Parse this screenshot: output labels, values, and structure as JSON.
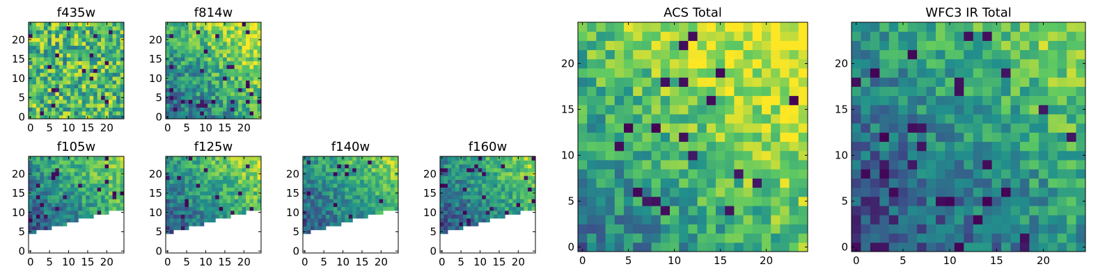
{
  "colormap": "viridis",
  "colormap_stops": [
    "#440154",
    "#3b528b",
    "#21918c",
    "#5ec962",
    "#fde725"
  ],
  "chart_data": [
    {
      "type": "heatmap",
      "title": "f435w",
      "grid_size": 25,
      "xlim": [
        0,
        24
      ],
      "ylim": [
        0,
        24
      ],
      "xticks": [
        0,
        5,
        10,
        15,
        20
      ],
      "yticks": [
        0,
        5,
        10,
        15,
        20
      ],
      "pattern": "noise",
      "mean_level": 0.68,
      "noise_level": 0.3,
      "dark_pixel_fraction": 0.03,
      "missing_region": "none"
    },
    {
      "type": "heatmap",
      "title": "f814w",
      "grid_size": 25,
      "xlim": [
        0,
        24
      ],
      "ylim": [
        0,
        24
      ],
      "xticks": [
        0,
        5,
        10,
        15,
        20
      ],
      "yticks": [
        0,
        5,
        10,
        15,
        20
      ],
      "pattern": "gradient toward top-right",
      "mean_level": 0.5,
      "noise_level": 0.22,
      "dark_pixel_fraction": 0.04,
      "missing_region": "none"
    },
    {
      "type": "heatmap",
      "title": "f105w",
      "grid_size": 25,
      "xlim": [
        0,
        24
      ],
      "ylim": [
        0,
        24
      ],
      "xticks": [
        0,
        5,
        10,
        15,
        20
      ],
      "yticks": [
        0,
        5,
        10,
        15,
        20
      ],
      "pattern": "gradient toward top-right",
      "mean_level": 0.38,
      "noise_level": 0.18,
      "dark_pixel_fraction": 0.04,
      "missing_region": "lower-right wedge"
    },
    {
      "type": "heatmap",
      "title": "f125w",
      "grid_size": 25,
      "xlim": [
        0,
        24
      ],
      "ylim": [
        0,
        24
      ],
      "xticks": [
        0,
        5,
        10,
        15,
        20
      ],
      "yticks": [
        0,
        5,
        10,
        15,
        20
      ],
      "pattern": "gradient toward top-right",
      "mean_level": 0.4,
      "noise_level": 0.18,
      "dark_pixel_fraction": 0.04,
      "missing_region": "lower-right wedge"
    },
    {
      "type": "heatmap",
      "title": "f140w",
      "grid_size": 25,
      "xlim": [
        0,
        24
      ],
      "ylim": [
        0,
        24
      ],
      "xticks": [
        0,
        5,
        10,
        15,
        20
      ],
      "yticks": [
        0,
        5,
        10,
        15,
        20
      ],
      "pattern": "gradient toward top-right",
      "mean_level": 0.38,
      "noise_level": 0.17,
      "dark_pixel_fraction": 0.04,
      "missing_region": "lower-right wedge"
    },
    {
      "type": "heatmap",
      "title": "f160w",
      "grid_size": 25,
      "xlim": [
        0,
        24
      ],
      "ylim": [
        0,
        24
      ],
      "xticks": [
        0,
        5,
        10,
        15,
        20
      ],
      "yticks": [
        0,
        5,
        10,
        15,
        20
      ],
      "pattern": "gradient toward top-right",
      "mean_level": 0.36,
      "noise_level": 0.17,
      "dark_pixel_fraction": 0.05,
      "missing_region": "lower-right wedge"
    },
    {
      "type": "heatmap",
      "title": "ACS Total",
      "grid_size": 25,
      "xlim": [
        0,
        24
      ],
      "ylim": [
        0,
        24
      ],
      "xticks": [
        0,
        5,
        10,
        15,
        20
      ],
      "yticks": [
        0,
        5,
        10,
        15,
        20
      ],
      "pattern": "gradient toward top-right",
      "mean_level": 0.58,
      "noise_level": 0.2,
      "dark_pixel_fraction": 0.025,
      "missing_region": "none"
    },
    {
      "type": "heatmap",
      "title": "WFC3 IR Total",
      "grid_size": 25,
      "xlim": [
        0,
        24
      ],
      "ylim": [
        0,
        24
      ],
      "xticks": [
        0,
        5,
        10,
        15,
        20
      ],
      "yticks": [
        0,
        5,
        10,
        15,
        20
      ],
      "pattern": "gradient toward top-right",
      "mean_level": 0.38,
      "noise_level": 0.18,
      "dark_pixel_fraction": 0.04,
      "missing_region": "none"
    }
  ]
}
